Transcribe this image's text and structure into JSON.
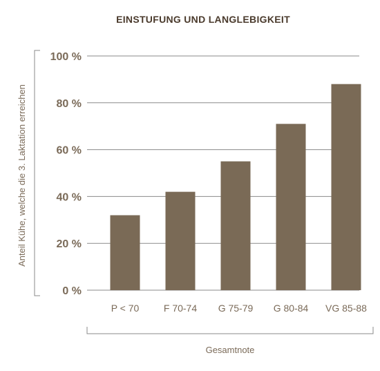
{
  "chart_data": {
    "type": "bar",
    "title": "EINSTUFUNG UND LANGLEBIGKEIT",
    "xlabel": "Gesamtnote",
    "ylabel": "Anteil Kühe, welche die 3. Laktation erreichen",
    "categories": [
      "P < 70",
      "F 70-74",
      "G 75-79",
      "G 80-84",
      "VG 85-88"
    ],
    "values": [
      32,
      42,
      55,
      71,
      88
    ],
    "ylim": [
      0,
      100
    ],
    "yticks": [
      0,
      20,
      40,
      60,
      80,
      100
    ],
    "ytick_labels": [
      "0 %",
      "20 %",
      "40 %",
      "60 %",
      "80 %",
      "100 %"
    ],
    "grid": true,
    "bar_color": "#7a6a56"
  }
}
